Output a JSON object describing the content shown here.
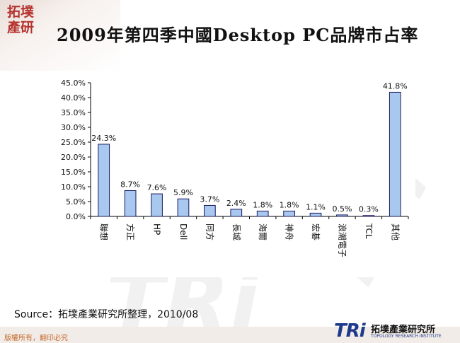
{
  "slide": {
    "title": "2009年第四季中國Desktop PC品牌市占率",
    "source": "Source：拓墣產業研究所整理，2010/08",
    "copyright": "版權所有，翻印必究",
    "brand": {
      "logo_line1": "拓墣",
      "logo_line2": "產研",
      "footer_mark": "TRi",
      "footer_cn": "拓墣產業研究所",
      "footer_en": "TOPOLOGY RESEARCH INSTITUTE",
      "watermark_text": "TRi"
    }
  },
  "colors": {
    "bar_fill": "#a8c8f0",
    "bar_stroke": "#1a1a5e",
    "axis": "#000000",
    "accent": "#b5332e",
    "footer_blue": "#1e3a8a"
  },
  "chart_data": {
    "type": "bar",
    "title": "",
    "xlabel": "",
    "ylabel": "",
    "ylim": [
      0,
      45
    ],
    "yticks": [
      "0.0%",
      "5.0%",
      "10.0%",
      "15.0%",
      "20.0%",
      "25.0%",
      "30.0%",
      "35.0%",
      "40.0%",
      "45.0%"
    ],
    "categories": [
      "聯想",
      "方正",
      "HP",
      "Dell",
      "同方",
      "長城",
      "海爾",
      "神舟",
      "宏碁",
      "浪潮電子",
      "TCL",
      "其他"
    ],
    "values": [
      24.3,
      8.7,
      7.6,
      5.9,
      3.7,
      2.4,
      1.8,
      1.8,
      1.1,
      0.5,
      0.3,
      41.8
    ],
    "value_labels": [
      "24.3%",
      "8.7%",
      "7.6%",
      "5.9%",
      "3.7%",
      "2.4%",
      "1.8%",
      "1.8%",
      "1.1%",
      "0.5%",
      "0.3%",
      "41.8%"
    ],
    "grid": false,
    "legend": "none"
  }
}
